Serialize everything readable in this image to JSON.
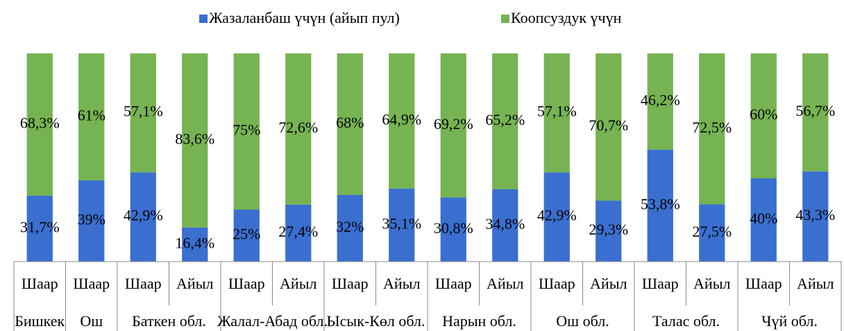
{
  "chart_data": {
    "type": "stacked_bar_100",
    "groups": [
      {
        "label": "Бишкек",
        "categories": [
          "Шаар"
        ]
      },
      {
        "label": "Ош",
        "categories": [
          "Шаар"
        ]
      },
      {
        "label": "Баткен обл.",
        "categories": [
          "Шаар",
          "Айыл"
        ]
      },
      {
        "label": "Жалал-Абад обл.",
        "categories": [
          "Шаар",
          "Айыл"
        ]
      },
      {
        "label": "Ысык-Көл обл.",
        "categories": [
          "Шаар",
          "Айыл"
        ]
      },
      {
        "label": "Нарын обл.",
        "categories": [
          "Шаар",
          "Айыл"
        ]
      },
      {
        "label": "Ош обл.",
        "categories": [
          "Шаар",
          "Айыл"
        ]
      },
      {
        "label": "Талас обл.",
        "categories": [
          "Шаар",
          "Айыл"
        ]
      },
      {
        "label": "Чүй обл.",
        "categories": [
          "Шаар",
          "Айыл"
        ]
      }
    ],
    "series": [
      {
        "name": "Жазаланбаш үчүн (айып пул)",
        "color": "#3a6fd0",
        "values": [
          31.7,
          39,
          42.9,
          16.4,
          25,
          27.4,
          32,
          35.1,
          30.8,
          34.8,
          42.9,
          29.3,
          53.8,
          27.5,
          40,
          43.3
        ],
        "value_labels": [
          "31,7%",
          "39%",
          "42,9%",
          "16,4%",
          "25%",
          "27,4%",
          "32%",
          "35,1%",
          "30,8%",
          "34,8%",
          "42,9%",
          "29,3%",
          "53,8%",
          "27,5%",
          "40%",
          "43,3%"
        ]
      },
      {
        "name": "Коопсуздук үчүн",
        "color": "#76b352",
        "values": [
          68.3,
          61,
          57.1,
          83.6,
          75,
          72.6,
          68,
          64.9,
          69.2,
          65.2,
          57.1,
          70.7,
          46.2,
          72.5,
          60,
          56.7
        ],
        "value_labels": [
          "68,3%",
          "61%",
          "57,1%",
          "83,6%",
          "75%",
          "72,6%",
          "68%",
          "64,9%",
          "69,2%",
          "65,2%",
          "57,1%",
          "70,7%",
          "46,2%",
          "72,5%",
          "60%",
          "56,7%"
        ]
      }
    ],
    "legend": "top"
  }
}
